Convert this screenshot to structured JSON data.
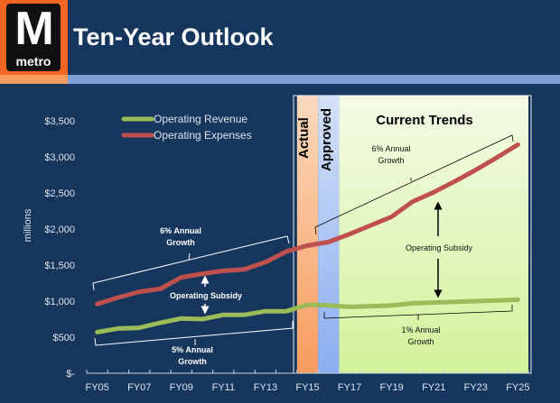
{
  "header": {
    "title": "Ten-Year Outlook",
    "logo_letter": "M",
    "logo_word": "metro"
  },
  "colors": {
    "background": "#17365d",
    "revenue": "#9bbb59",
    "expenses": "#c0504d",
    "actual_band": "#f8b987",
    "approved_band": "#a9c2f2",
    "current_band": "#e6f7c4"
  },
  "chart_data": {
    "type": "line",
    "ylabel": "millions",
    "ylim": [
      0,
      3500
    ],
    "yticks": [
      0,
      500,
      1000,
      1500,
      2000,
      2500,
      3000,
      3500
    ],
    "ytick_labels": [
      "$-",
      "$500",
      "$1,000",
      "$1,500",
      "$2,000",
      "$2,500",
      "$3,000",
      "$3,500"
    ],
    "categories": [
      "FY05",
      "FY06",
      "FY07",
      "FY08",
      "FY09",
      "FY10",
      "FY11",
      "FY12",
      "FY13",
      "FY14",
      "FY15",
      "FY16",
      "FY17",
      "FY18",
      "FY19",
      "FY20",
      "FY21",
      "FY22",
      "FY23",
      "FY24",
      "FY25"
    ],
    "xtick_labels": [
      "FY05",
      "FY07",
      "FY09",
      "FY11",
      "FY13",
      "FY15",
      "FY17",
      "FY19",
      "FY21",
      "FY23",
      "FY25"
    ],
    "legend": "top-left",
    "grid": false,
    "series": [
      {
        "name": "Operating Revenue",
        "color": "#9bbb59",
        "values": [
          570,
          620,
          630,
          700,
          760,
          750,
          810,
          810,
          860,
          860,
          950,
          940,
          920,
          930,
          940,
          970,
          980,
          990,
          1000,
          1010,
          1020
        ]
      },
      {
        "name": "Operating Expenses",
        "color": "#c0504d",
        "values": [
          960,
          1050,
          1130,
          1170,
          1330,
          1380,
          1420,
          1440,
          1540,
          1690,
          1770,
          1820,
          1930,
          2050,
          2170,
          2380,
          2510,
          2660,
          2820,
          2990,
          3170
        ]
      }
    ],
    "regions": [
      {
        "label": "Actual",
        "from": "FY15",
        "to": "FY15"
      },
      {
        "label": "Approved",
        "from": "FY16",
        "to": "FY16"
      },
      {
        "label": "Current Trends",
        "from": "FY17",
        "to": "FY25"
      }
    ],
    "annotations": {
      "left_expense_growth": [
        "6% Annual",
        "Growth"
      ],
      "left_revenue_growth": [
        "5% Annual",
        "Growth"
      ],
      "left_subsidy": "Operating Subsidy",
      "right_expense_growth": [
        "6% Annual",
        "Growth"
      ],
      "right_revenue_growth": [
        "1% Annual",
        "Growth"
      ],
      "right_subsidy": "Operating Subsidy"
    }
  }
}
